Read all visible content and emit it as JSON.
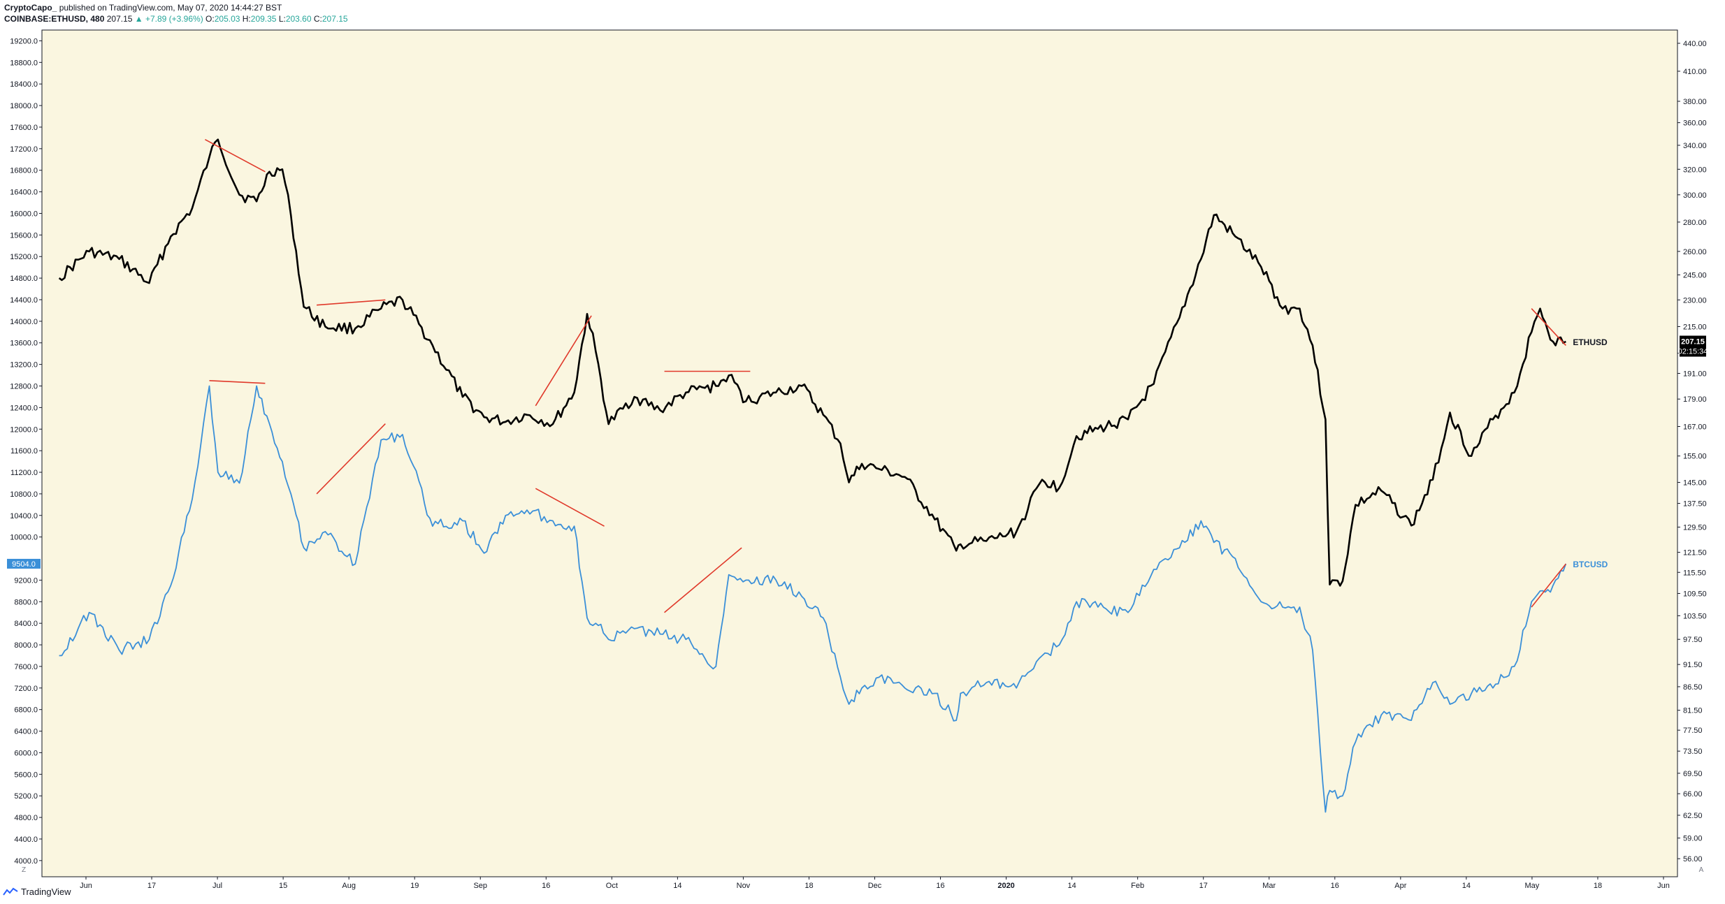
{
  "header": {
    "author": "CryptoCapo_",
    "published": "published on TradingView.com, May 07, 2020 14:44:27 BST",
    "symbol": "COINBASE:ETHUSD, 480",
    "last": "207.15",
    "change": "▲ +7.89 (+3.96%)",
    "o_label": "O:",
    "o": "205.03",
    "h_label": "H:",
    "h": "209.35",
    "l_label": "L:",
    "l": "203.60",
    "c_label": "C:",
    "c": "207.15"
  },
  "footer": {
    "brand": "TradingView",
    "zoom_left": "Z",
    "auto_right": "A"
  },
  "colors": {
    "background": "#faf6e0",
    "eth_line": "#000000",
    "btc_line": "#3a8fd8",
    "trendline": "#e0392a",
    "axis_text": "#131722"
  },
  "chart_data": {
    "type": "line",
    "x_ticks": [
      "Jun",
      "17",
      "Jul",
      "15",
      "Aug",
      "19",
      "Sep",
      "16",
      "Oct",
      "14",
      "Nov",
      "18",
      "Dec",
      "16",
      "2020",
      "14",
      "Feb",
      "17",
      "Mar",
      "16",
      "Apr",
      "14",
      "May",
      "18",
      "Jun"
    ],
    "left_axis": {
      "ticks": [
        "19200.0",
        "18800.0",
        "18400.0",
        "18000.0",
        "17600.0",
        "17200.0",
        "16800.0",
        "16400.0",
        "16000.0",
        "15600.0",
        "15200.0",
        "14800.0",
        "14400.0",
        "14000.0",
        "13600.0",
        "13200.0",
        "12800.0",
        "12400.0",
        "12000.0",
        "11600.0",
        "11200.0",
        "10800.0",
        "10400.0",
        "10000.0",
        "9200.0",
        "8800.0",
        "8400.0",
        "8000.0",
        "7600.0",
        "7200.0",
        "6800.0",
        "6400.0",
        "6000.0",
        "5600.0",
        "5200.0",
        "4800.0",
        "4400.0",
        "4000.0"
      ],
      "range": [
        3700,
        19400
      ],
      "marker": "9504.0",
      "marker_value": 9504
    },
    "right_axis": {
      "ticks": [
        "440.00",
        "410.00",
        "380.00",
        "360.00",
        "340.00",
        "320.00",
        "300.00",
        "280.00",
        "260.00",
        "245.00",
        "230.00",
        "215.00",
        "201.00",
        "191.00",
        "179.00",
        "167.00",
        "155.00",
        "145.00",
        "137.50",
        "129.50",
        "121.50",
        "115.50",
        "109.50",
        "103.50",
        "97.50",
        "91.50",
        "86.50",
        "81.50",
        "77.50",
        "73.50",
        "69.50",
        "66.00",
        "62.50",
        "59.00",
        "56.00"
      ],
      "scale": "log",
      "range": [
        53.5,
        455
      ],
      "marker_price": "207.15",
      "marker_price_value": 207.15,
      "marker_timer": "02:15:34"
    },
    "series": [
      {
        "name": "ETHUSD",
        "axis": "right",
        "x": [
          "2019-05-22",
          "2019-05-29",
          "2019-06-05",
          "2019-06-12",
          "2019-06-17",
          "2019-06-22",
          "2019-06-26",
          "2019-06-28",
          "2019-07-03",
          "2019-07-07",
          "2019-07-10",
          "2019-07-13",
          "2019-07-15",
          "2019-07-18",
          "2019-07-23",
          "2019-07-30",
          "2019-08-05",
          "2019-08-10",
          "2019-08-17",
          "2019-08-24",
          "2019-08-29",
          "2019-09-03",
          "2019-09-08",
          "2019-09-14",
          "2019-09-19",
          "2019-09-22",
          "2019-09-24",
          "2019-09-27",
          "2019-10-03",
          "2019-10-09",
          "2019-10-15",
          "2019-10-22",
          "2019-10-25",
          "2019-10-29",
          "2019-11-05",
          "2019-11-11",
          "2019-11-16",
          "2019-11-20",
          "2019-11-22",
          "2019-11-25",
          "2019-11-29",
          "2019-12-05",
          "2019-12-12",
          "2019-12-17",
          "2019-12-18",
          "2019-12-24",
          "2019-12-31",
          "2020-01-06",
          "2020-01-10",
          "2020-01-14",
          "2020-01-19",
          "2020-01-26",
          "2020-02-01",
          "2020-02-07",
          "2020-02-12",
          "2020-02-15",
          "2020-02-20",
          "2020-02-26",
          "2020-03-02",
          "2020-03-06",
          "2020-03-09",
          "2020-03-12",
          "2020-03-13",
          "2020-03-16",
          "2020-03-19",
          "2020-03-25",
          "2020-04-01",
          "2020-04-06",
          "2020-04-10",
          "2020-04-15",
          "2020-04-20",
          "2020-04-25",
          "2020-04-29",
          "2020-05-01",
          "2020-05-04",
          "2020-05-07"
        ],
        "values": [
          243,
          260,
          255,
          240,
          270,
          290,
          330,
          345,
          300,
          295,
          318,
          320,
          285,
          226,
          215,
          214,
          225,
          230,
          205,
          180,
          171,
          169,
          172,
          168,
          182,
          222,
          202,
          168,
          180,
          174,
          182,
          185,
          190,
          178,
          182,
          185,
          172,
          160,
          145,
          152,
          150,
          147,
          132,
          122,
          124,
          125,
          128,
          146,
          143,
          163,
          166,
          170,
          186,
          220,
          255,
          285,
          270,
          250,
          225,
          225,
          205,
          170,
          112,
          113,
          137,
          142,
          130,
          146,
          173,
          155,
          170,
          182,
          212,
          225,
          207,
          207
        ]
      },
      {
        "name": "BTCUSD",
        "axis": "left",
        "x": [
          "2019-05-22",
          "2019-05-29",
          "2019-06-05",
          "2019-06-12",
          "2019-06-17",
          "2019-06-22",
          "2019-06-26",
          "2019-06-28",
          "2019-07-03",
          "2019-07-07",
          "2019-07-10",
          "2019-07-13",
          "2019-07-15",
          "2019-07-18",
          "2019-07-23",
          "2019-07-30",
          "2019-08-05",
          "2019-08-10",
          "2019-08-17",
          "2019-08-24",
          "2019-08-29",
          "2019-09-03",
          "2019-09-08",
          "2019-09-14",
          "2019-09-19",
          "2019-09-22",
          "2019-09-24",
          "2019-09-27",
          "2019-10-03",
          "2019-10-09",
          "2019-10-15",
          "2019-10-22",
          "2019-10-25",
          "2019-10-29",
          "2019-11-05",
          "2019-11-11",
          "2019-11-16",
          "2019-11-20",
          "2019-11-22",
          "2019-11-25",
          "2019-11-29",
          "2019-12-05",
          "2019-12-12",
          "2019-12-17",
          "2019-12-18",
          "2019-12-24",
          "2019-12-31",
          "2020-01-06",
          "2020-01-10",
          "2020-01-14",
          "2020-01-19",
          "2020-01-26",
          "2020-02-01",
          "2020-02-07",
          "2020-02-12",
          "2020-02-15",
          "2020-02-20",
          "2020-02-26",
          "2020-03-02",
          "2020-03-06",
          "2020-03-09",
          "2020-03-12",
          "2020-03-13",
          "2020-03-16",
          "2020-03-19",
          "2020-03-25",
          "2020-04-01",
          "2020-04-06",
          "2020-04-10",
          "2020-04-15",
          "2020-04-20",
          "2020-04-25",
          "2020-04-29",
          "2020-05-01",
          "2020-05-04",
          "2020-05-07"
        ],
        "values": [
          7800,
          8600,
          7900,
          8100,
          9100,
          10700,
          12800,
          11200,
          11000,
          12800,
          12100,
          11400,
          10800,
          9800,
          10100,
          9500,
          11800,
          11900,
          10200,
          10300,
          9700,
          10400,
          10500,
          10300,
          10200,
          8500,
          8400,
          8100,
          8300,
          8200,
          8100,
          7600,
          9300,
          9200,
          9200,
          8900,
          8500,
          7400,
          6900,
          7200,
          7400,
          7200,
          7100,
          6600,
          7100,
          7300,
          7200,
          7800,
          8000,
          8800,
          8700,
          8600,
          9400,
          9800,
          10300,
          9900,
          9600,
          8800,
          8700,
          8700,
          7900,
          4900,
          5300,
          5200,
          6200,
          6700,
          6600,
          7300,
          6900,
          7100,
          7200,
          7600,
          8800,
          9000,
          9100,
          9504
        ]
      }
    ],
    "annotations": [
      {
        "label": "ETHUSD",
        "series": "ETHUSD"
      },
      {
        "label": "BTCUSD",
        "series": "BTCUSD"
      }
    ],
    "trendlines": [
      {
        "axis": "right",
        "from": [
          "2019-06-25",
          345
        ],
        "to": [
          "2019-07-09",
          318
        ]
      },
      {
        "axis": "right",
        "from": [
          "2019-07-21",
          227
        ],
        "to": [
          "2019-08-06",
          230
        ]
      },
      {
        "axis": "right",
        "from": [
          "2019-09-10",
          176
        ],
        "to": [
          "2019-09-23",
          221
        ]
      },
      {
        "axis": "right",
        "from": [
          "2019-10-10",
          192
        ],
        "to": [
          "2019-10-30",
          192
        ]
      },
      {
        "axis": "right",
        "from": [
          "2020-04-29",
          225
        ],
        "to": [
          "2020-05-07",
          205
        ]
      },
      {
        "axis": "left",
        "from": [
          "2019-06-26",
          12900
        ],
        "to": [
          "2019-07-09",
          12850
        ]
      },
      {
        "axis": "left",
        "from": [
          "2019-07-21",
          10800
        ],
        "to": [
          "2019-08-06",
          12100
        ]
      },
      {
        "axis": "left",
        "from": [
          "2019-09-10",
          10900
        ],
        "to": [
          "2019-09-26",
          10200
        ]
      },
      {
        "axis": "left",
        "from": [
          "2019-10-10",
          8600
        ],
        "to": [
          "2019-10-28",
          9800
        ]
      },
      {
        "axis": "left",
        "from": [
          "2020-04-29",
          8700
        ],
        "to": [
          "2020-05-07",
          9500
        ]
      }
    ]
  }
}
